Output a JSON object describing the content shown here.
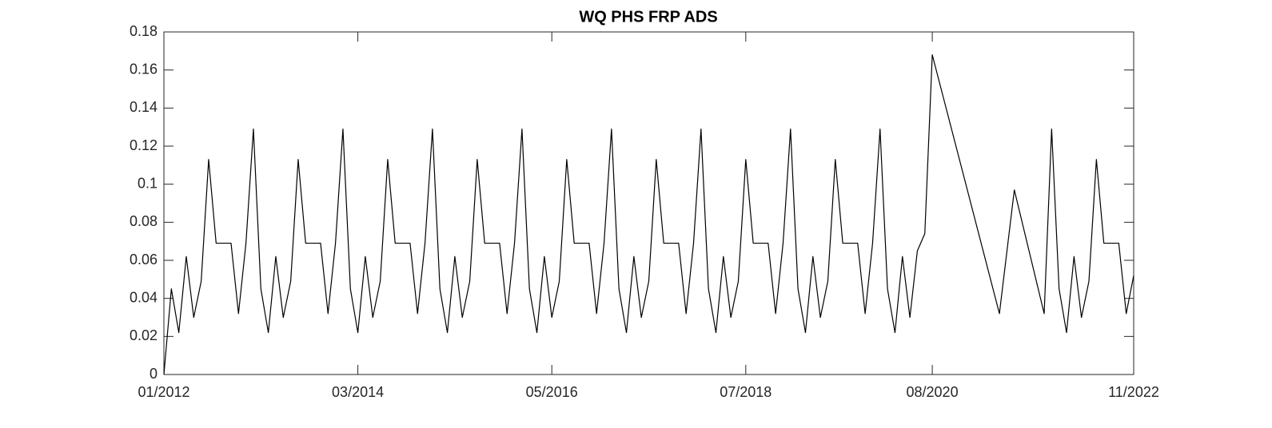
{
  "chart_data": {
    "type": "line",
    "title": "WQ PHS FRP ADS",
    "x": [
      "01/2012",
      "02/2012",
      "03/2012",
      "04/2012",
      "05/2012",
      "06/2012",
      "07/2012",
      "08/2012",
      "09/2012",
      "10/2012",
      "11/2012",
      "12/2012",
      "01/2013",
      "02/2013",
      "03/2013",
      "04/2013",
      "05/2013",
      "06/2013",
      "07/2013",
      "08/2013",
      "09/2013",
      "10/2013",
      "11/2013",
      "12/2013",
      "01/2014",
      "02/2014",
      "03/2014",
      "04/2014",
      "05/2014",
      "06/2014",
      "07/2014",
      "08/2014",
      "09/2014",
      "10/2014",
      "11/2014",
      "12/2014",
      "01/2015",
      "02/2015",
      "03/2015",
      "04/2015",
      "05/2015",
      "06/2015",
      "07/2015",
      "08/2015",
      "09/2015",
      "10/2015",
      "11/2015",
      "12/2015",
      "01/2016",
      "02/2016",
      "03/2016",
      "04/2016",
      "05/2016",
      "06/2016",
      "07/2016",
      "08/2016",
      "09/2016",
      "10/2016",
      "11/2016",
      "12/2016",
      "01/2017",
      "02/2017",
      "03/2017",
      "04/2017",
      "05/2017",
      "06/2017",
      "07/2017",
      "08/2017",
      "09/2017",
      "10/2017",
      "11/2017",
      "12/2017",
      "01/2018",
      "02/2018",
      "03/2018",
      "04/2018",
      "05/2018",
      "06/2018",
      "07/2018",
      "08/2018",
      "09/2018",
      "10/2018",
      "11/2018",
      "12/2018",
      "01/2019",
      "02/2019",
      "03/2019",
      "04/2019",
      "05/2019",
      "06/2019",
      "07/2019",
      "08/2019",
      "09/2019",
      "10/2019",
      "11/2019",
      "12/2019",
      "01/2020",
      "02/2020",
      "03/2020",
      "04/2020",
      "05/2020",
      "06/2020",
      "07/2020",
      "08/2020",
      "05/2021",
      "07/2021",
      "11/2021",
      "12/2021",
      "01/2022",
      "02/2022",
      "03/2022",
      "04/2022",
      "05/2022",
      "06/2022",
      "07/2022",
      "08/2022",
      "09/2022",
      "10/2022",
      "11/2022"
    ],
    "series": [
      {
        "color": "#000000",
        "values": [
          0,
          0.045,
          0.022,
          0.062,
          0.03,
          0.049,
          0.113,
          0.069,
          0.069,
          0.069,
          0.032,
          0.069,
          0.129,
          0.045,
          0.022,
          0.062,
          0.03,
          0.049,
          0.113,
          0.069,
          0.069,
          0.069,
          0.032,
          0.069,
          0.129,
          0.045,
          0.022,
          0.062,
          0.03,
          0.049,
          0.113,
          0.069,
          0.069,
          0.069,
          0.032,
          0.069,
          0.129,
          0.045,
          0.022,
          0.062,
          0.03,
          0.049,
          0.113,
          0.069,
          0.069,
          0.069,
          0.032,
          0.069,
          0.129,
          0.045,
          0.022,
          0.062,
          0.03,
          0.049,
          0.113,
          0.069,
          0.069,
          0.069,
          0.032,
          0.069,
          0.129,
          0.045,
          0.022,
          0.062,
          0.03,
          0.049,
          0.113,
          0.069,
          0.069,
          0.069,
          0.032,
          0.069,
          0.129,
          0.045,
          0.022,
          0.062,
          0.03,
          0.049,
          0.113,
          0.069,
          0.069,
          0.069,
          0.032,
          0.069,
          0.129,
          0.045,
          0.022,
          0.062,
          0.03,
          0.049,
          0.113,
          0.069,
          0.069,
          0.069,
          0.032,
          0.069,
          0.129,
          0.045,
          0.022,
          0.062,
          0.03,
          0.065,
          0.074,
          0.168,
          0.032,
          0.097,
          0.032,
          0.129,
          0.045,
          0.022,
          0.062,
          0.03,
          0.049,
          0.113,
          0.069,
          0.069,
          0.069,
          0.032,
          0.052
        ]
      }
    ],
    "xlim": [
      "01/2012",
      "11/2022"
    ],
    "xticks": [
      "01/2012",
      "03/2014",
      "05/2016",
      "07/2018",
      "08/2020",
      "11/2022"
    ],
    "ylim": [
      0,
      0.18
    ],
    "yticks": [
      0,
      0.02,
      0.04,
      0.06,
      0.08,
      0.1,
      0.12,
      0.14,
      0.16,
      0.18
    ]
  }
}
